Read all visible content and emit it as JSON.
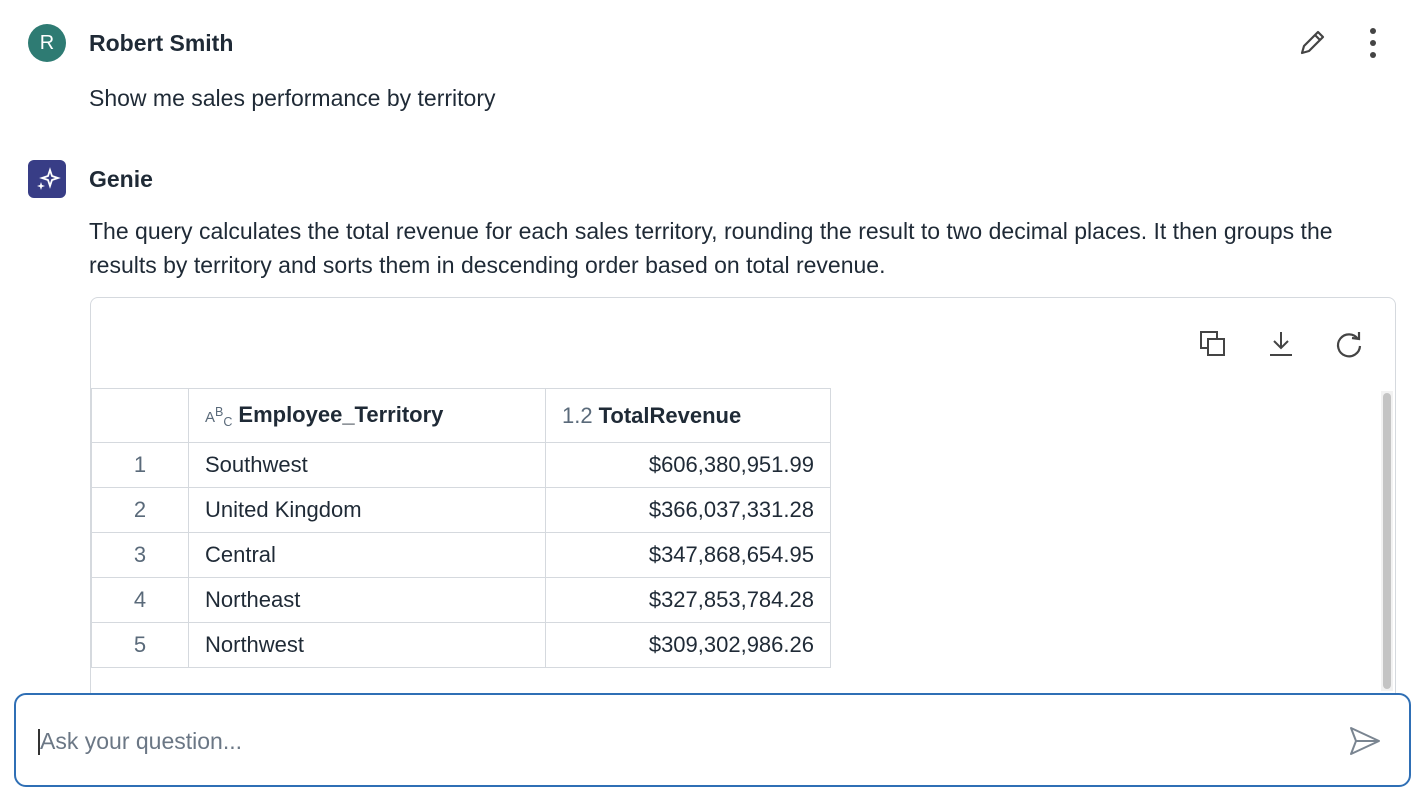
{
  "user_message": {
    "avatar": "R",
    "name": "Robert Smith",
    "text": "Show me sales performance by territory"
  },
  "assistant_message": {
    "name": "Genie",
    "text": "The query calculates the total revenue for each sales territory, rounding the result to two decimal places. It then groups the results by territory and sorts them in descending order based on total revenue."
  },
  "table": {
    "columns": [
      "Employee_Territory",
      "TotalRevenue"
    ],
    "numeric_type_label": "1.2",
    "rows": [
      [
        1,
        "Southwest",
        "$606,380,951.99"
      ],
      [
        2,
        "United Kingdom",
        "$366,037,331.28"
      ],
      [
        3,
        "Central",
        "$347,868,654.95"
      ],
      [
        4,
        "Northeast",
        "$327,853,784.28"
      ],
      [
        5,
        "Northwest",
        "$309,302,986.26"
      ]
    ]
  },
  "input": {
    "placeholder": "Ask your question..."
  }
}
